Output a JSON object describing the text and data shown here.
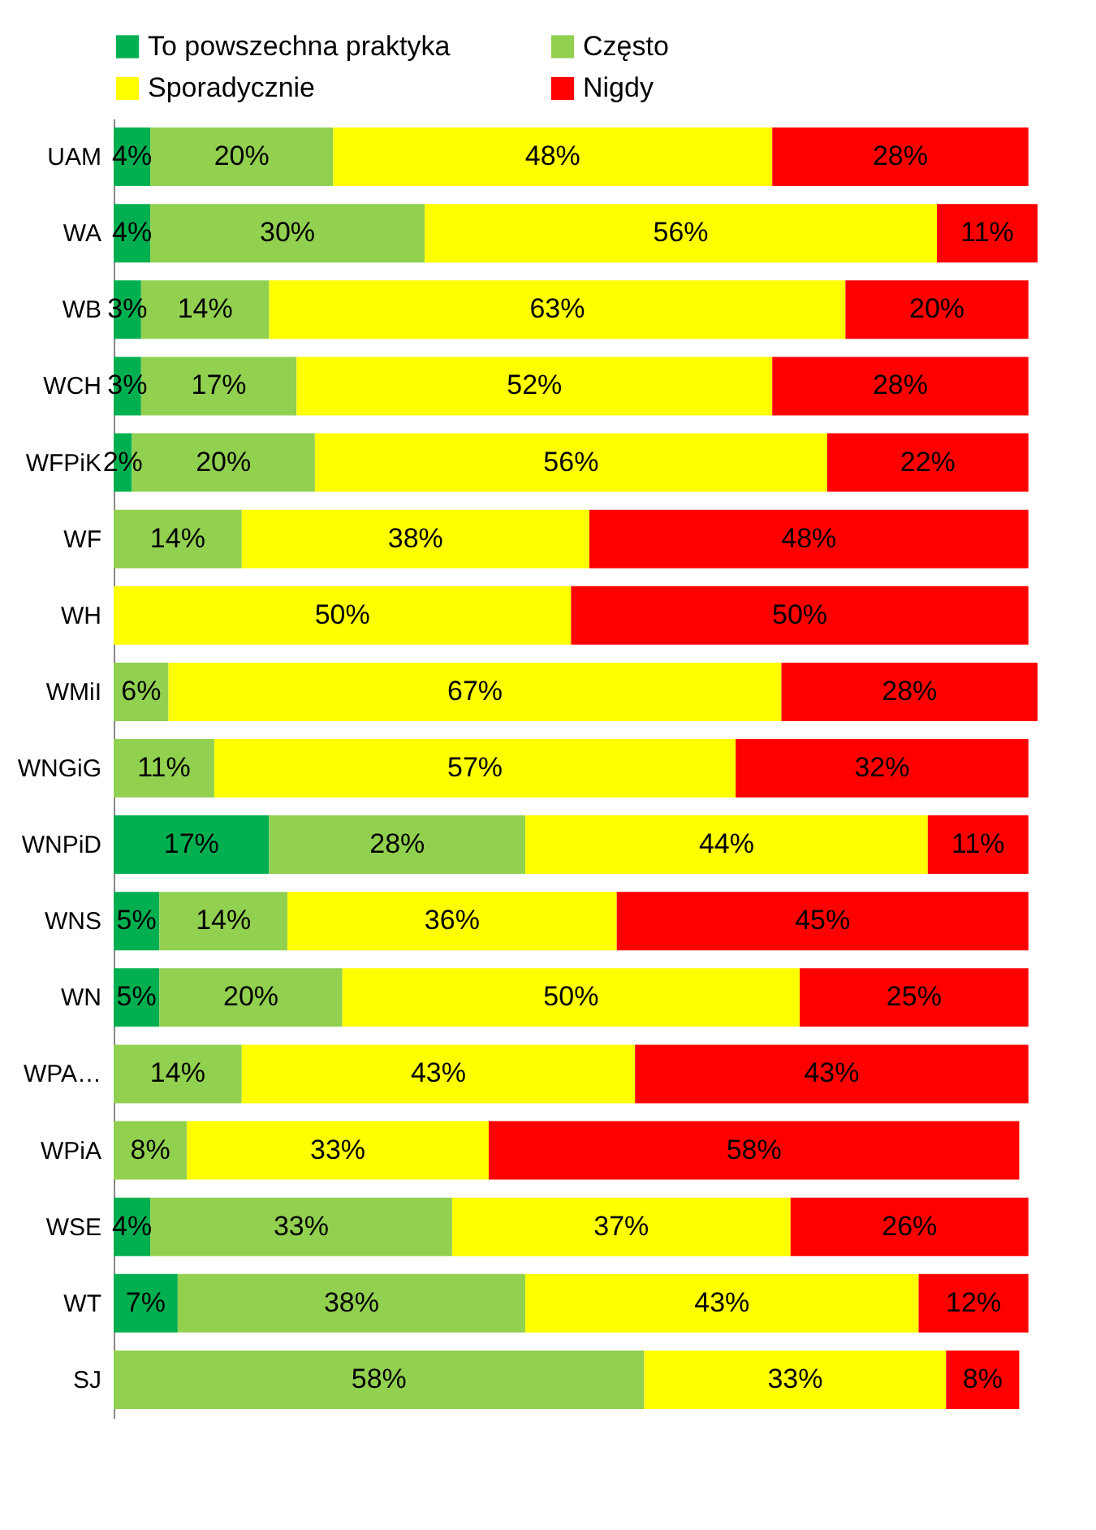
{
  "chart_data": {
    "type": "bar",
    "orientation": "horizontal",
    "stacked": true,
    "legend": "top",
    "grid": false,
    "categories": [
      "UAM",
      "WA",
      "WB",
      "WCH",
      "WFPiK",
      "WF",
      "WH",
      "WMiI",
      "WNGiG",
      "WNPiD",
      "WNS",
      "WN",
      "WPA…",
      "WPiA",
      "WSE",
      "WT",
      "SJ"
    ],
    "series": [
      {
        "name": "To powszechna praktyka",
        "color": "#00b050",
        "values": [
          4,
          4,
          3,
          3,
          2,
          null,
          null,
          null,
          null,
          17,
          5,
          5,
          null,
          null,
          4,
          7,
          null
        ],
        "value_labels": [
          "4%",
          "4%",
          "3%",
          "3%",
          "2%",
          null,
          null,
          null,
          null,
          "17%",
          "5%",
          "5%",
          null,
          null,
          "4%",
          "7%",
          null
        ]
      },
      {
        "name": "Często",
        "color": "#92d050",
        "values": [
          20,
          30,
          14,
          17,
          20,
          14,
          null,
          6,
          11,
          28,
          14,
          20,
          14,
          8,
          33,
          38,
          58
        ],
        "value_labels": [
          "20%",
          "30%",
          "14%",
          "17%",
          "20%",
          "14%",
          null,
          "6%",
          "11%",
          "28%",
          "14%",
          "20%",
          "14%",
          "8%",
          "33%",
          "38%",
          "58%"
        ]
      },
      {
        "name": "Sporadycznie",
        "color": "#ffff00",
        "values": [
          48,
          56,
          63,
          52,
          56,
          38,
          50,
          67,
          57,
          44,
          36,
          50,
          43,
          33,
          37,
          43,
          33
        ],
        "value_labels": [
          "48%",
          "56%",
          "63%",
          "52%",
          "56%",
          "38%",
          "50%",
          "67%",
          "57%",
          "44%",
          "36%",
          "50%",
          "43%",
          "33%",
          "37%",
          "43%",
          "33%"
        ]
      },
      {
        "name": "Nigdy",
        "color": "#ff0000",
        "values": [
          28,
          11,
          20,
          28,
          22,
          48,
          50,
          28,
          32,
          11,
          45,
          25,
          43,
          58,
          26,
          12,
          8
        ],
        "value_labels": [
          "28%",
          "11%",
          "20%",
          "28%",
          "22%",
          "48%",
          "50%",
          "28%",
          "32%",
          "11%",
          "45%",
          "25%",
          "43%",
          "58%",
          "26%",
          "12%",
          "8%"
        ]
      }
    ]
  }
}
